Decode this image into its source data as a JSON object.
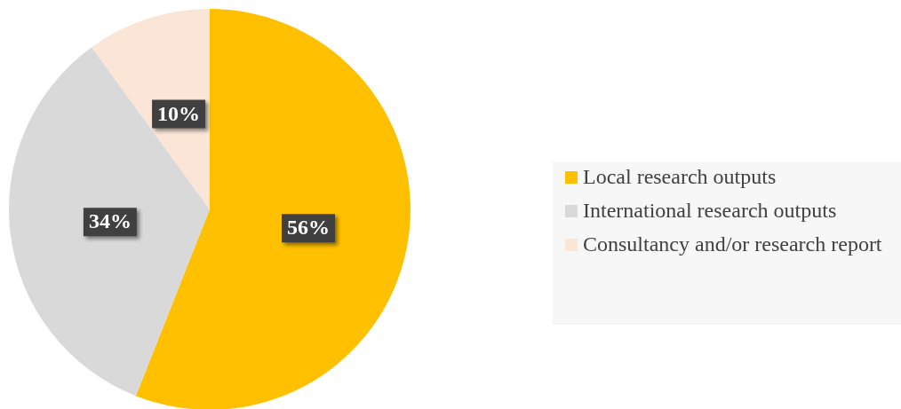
{
  "chart_data": {
    "type": "pie",
    "categories": [
      "Local research outputs",
      "International research outputs",
      "Consultancy and/or research report"
    ],
    "values": [
      56,
      34,
      10
    ],
    "colors": [
      "#ffc000",
      "#d9d9d9",
      "#fbe5d6"
    ],
    "value_labels": [
      "56%",
      "34%",
      "10%"
    ],
    "legend": "right"
  }
}
